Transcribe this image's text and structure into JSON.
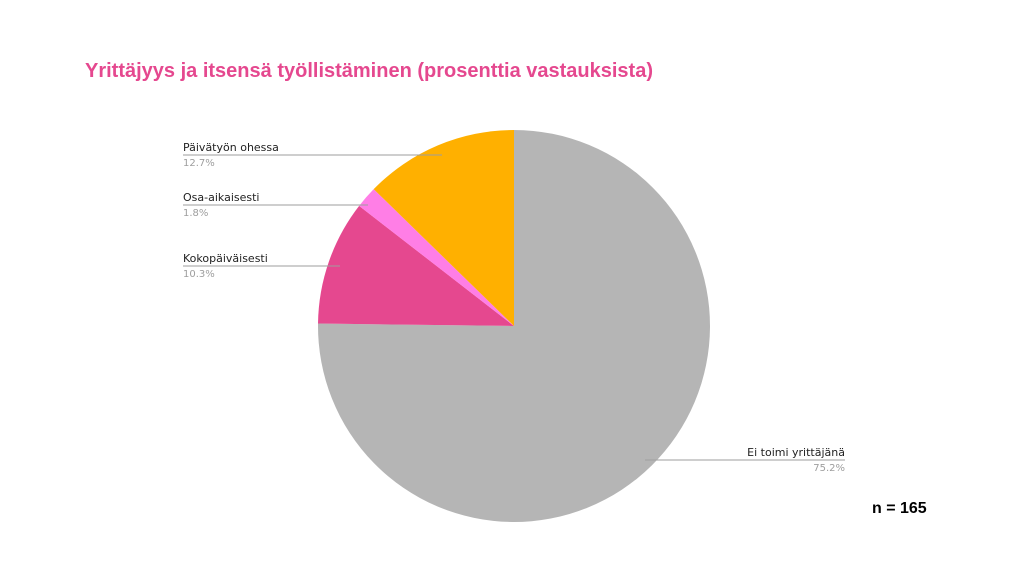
{
  "title": "Yrittäjyys ja itsensä työllistäminen (prosenttia vastauksista)",
  "sample_note": "n = 165",
  "colors": {
    "title": "#e5488f",
    "leader_line": "#9e9e9e"
  },
  "chart_data": {
    "type": "pie",
    "slices": [
      {
        "label": "Ei toimi yrittäjänä",
        "value": 75.2,
        "value_label": "75.2%",
        "color": "#b5b5b5"
      },
      {
        "label": "Kokopäiväisesti",
        "value": 10.3,
        "value_label": "10.3%",
        "color": "#e5488f"
      },
      {
        "label": "Osa-aikaisesti",
        "value": 1.8,
        "value_label": "1.8%",
        "color": "#ff7ee6"
      },
      {
        "label": "Päivätyön ohessa",
        "value": 12.7,
        "value_label": "12.7%",
        "color": "#ffb000"
      }
    ]
  }
}
